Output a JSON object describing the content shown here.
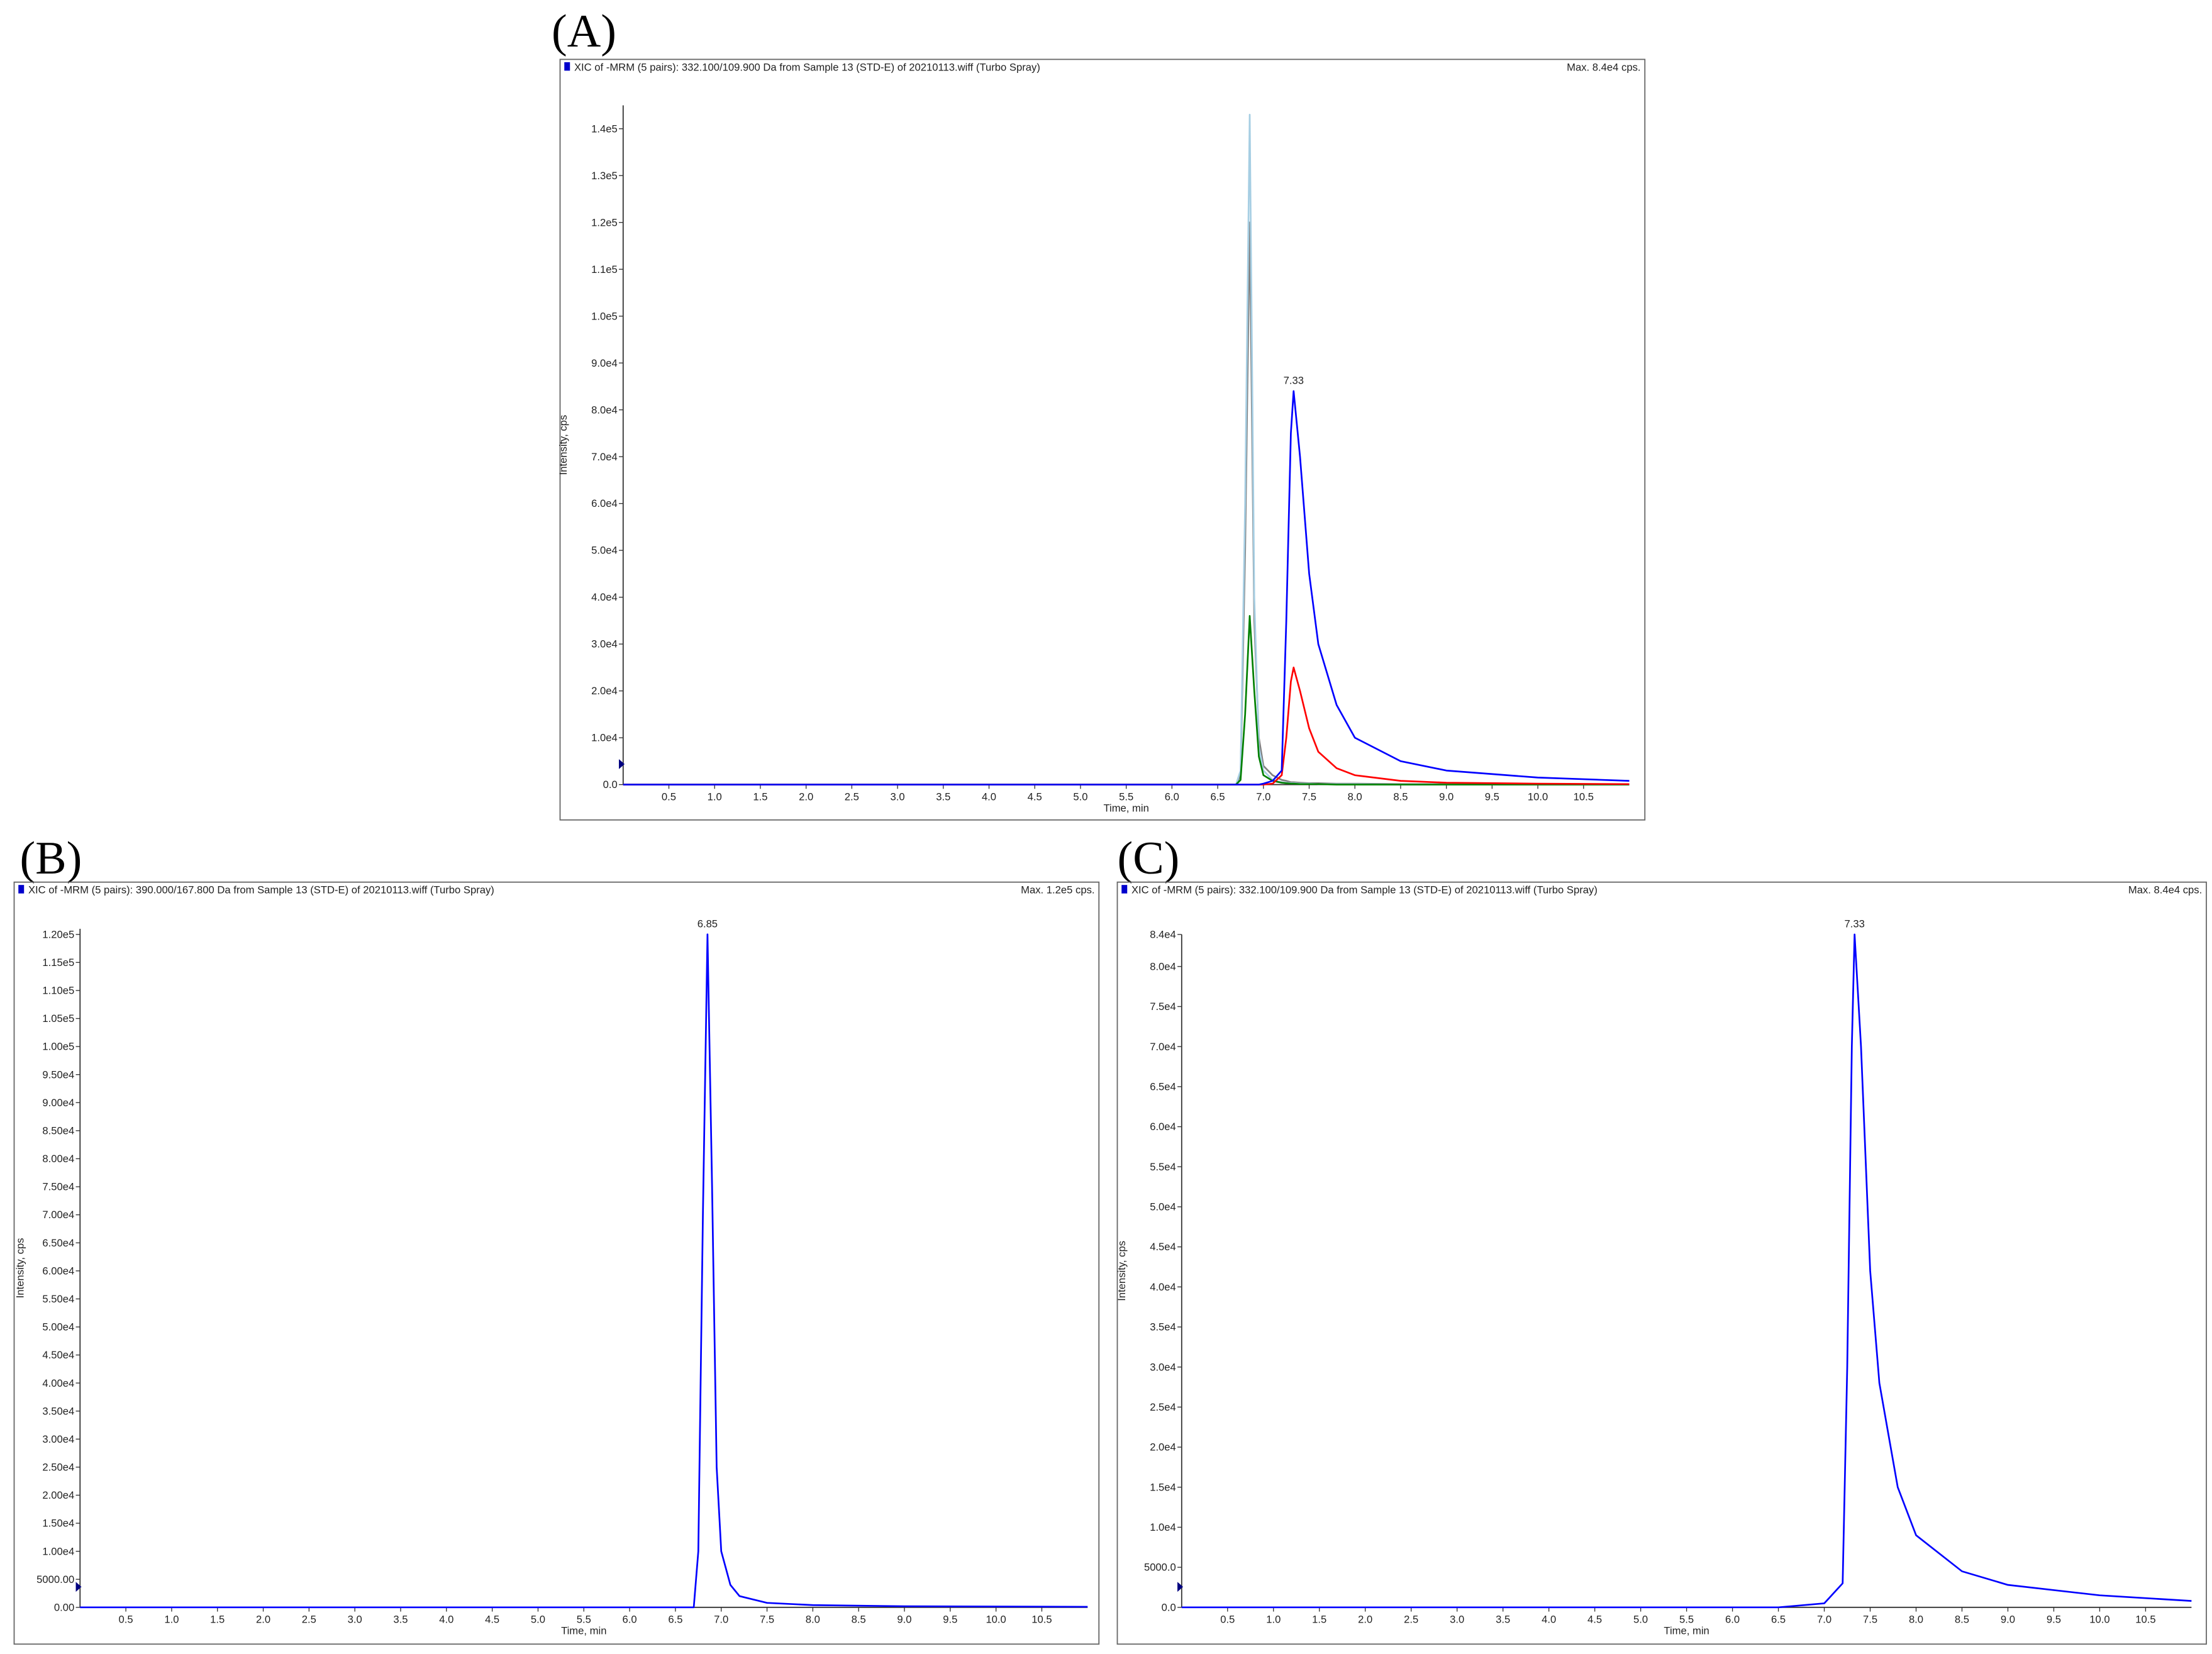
{
  "chart_data": [
    {
      "type": "line",
      "panel_label": "(A)",
      "title": "XIC of -MRM (5 pairs): 332.100/109.900 Da  from Sample 13 (STD-E) of 20210113.wiff (Turbo Spray)",
      "max_label": "Max. 8.4e4 cps.",
      "xlabel": "Time, min",
      "ylabel": "Intensity, cps",
      "annotations": [
        {
          "text": "7.33",
          "x": 7.33,
          "y": 84000
        }
      ],
      "xlim": [
        0,
        11
      ],
      "ylim": [
        0,
        145000
      ],
      "xticks": [
        0.5,
        {
          "value": 1,
          "label": "1.0"
        },
        1.5,
        {
          "value": 2,
          "label": "2.0"
        },
        2.5,
        {
          "value": 3,
          "label": "3.0"
        },
        3.5,
        {
          "value": 4,
          "label": "4.0"
        },
        4.5,
        {
          "value": 5,
          "label": "5.0"
        },
        5.5,
        {
          "value": 6,
          "label": "6.0"
        },
        6.5,
        {
          "value": 7,
          "label": "7.0"
        },
        7.5,
        {
          "value": 8,
          "label": "8.0"
        },
        8.5,
        {
          "value": 9,
          "label": "9.0"
        },
        9.5,
        {
          "value": 10,
          "label": "10.0"
        },
        10.5
      ],
      "yticks": [
        {
          "value": 0,
          "label": "0.0"
        },
        {
          "value": 10000,
          "label": "1.0e4"
        },
        {
          "value": 20000,
          "label": "2.0e4"
        },
        {
          "value": 30000,
          "label": "3.0e4"
        },
        {
          "value": 40000,
          "label": "4.0e4"
        },
        {
          "value": 50000,
          "label": "5.0e4"
        },
        {
          "value": 60000,
          "label": "6.0e4"
        },
        {
          "value": 70000,
          "label": "7.0e4"
        },
        {
          "value": 80000,
          "label": "8.0e4"
        },
        {
          "value": 90000,
          "label": "9.0e4"
        },
        {
          "value": 100000,
          "label": "1.0e5"
        },
        {
          "value": 110000,
          "label": "1.1e5"
        },
        {
          "value": 120000,
          "label": "1.2e5"
        },
        {
          "value": 130000,
          "label": "1.3e5"
        },
        {
          "value": 140000,
          "label": "1.4e5"
        }
      ],
      "x": [
        0,
        6.6,
        6.7,
        6.75,
        6.8,
        6.85,
        6.9,
        6.95,
        7.0,
        7.1,
        7.2,
        7.25,
        7.3,
        7.33,
        7.4,
        7.5,
        7.6,
        7.8,
        8.0,
        8.5,
        9.0,
        10.0,
        11.0
      ],
      "series": [
        {
          "color": "#808080",
          "values": [
            0,
            0,
            0,
            2000,
            50000,
            120000,
            35000,
            10000,
            4000,
            2000,
            1000,
            800,
            500,
            500,
            400,
            300,
            300,
            200,
            200,
            100,
            100,
            0,
            0
          ]
        },
        {
          "color": "#a6cee3",
          "values": [
            0,
            0,
            0,
            3000,
            60000,
            143000,
            40000,
            8000,
            3000,
            1000,
            500,
            400,
            300,
            300,
            200,
            200,
            100,
            100,
            100,
            0,
            0,
            0,
            0
          ]
        },
        {
          "color": "#008000",
          "values": [
            0,
            0,
            0,
            1000,
            15000,
            36000,
            20000,
            6000,
            2000,
            800,
            400,
            300,
            200,
            200,
            100,
            100,
            100,
            0,
            0,
            0,
            0,
            0,
            0
          ]
        },
        {
          "color": "#ff0000",
          "values": [
            0,
            0,
            0,
            0,
            0,
            0,
            0,
            0,
            0,
            200,
            2000,
            10000,
            22000,
            25000,
            20000,
            12000,
            7000,
            3500,
            2000,
            800,
            400,
            200,
            100
          ]
        },
        {
          "color": "#0000ff",
          "values": [
            0,
            0,
            0,
            0,
            0,
            0,
            0,
            0,
            200,
            800,
            3000,
            35000,
            75000,
            84000,
            70000,
            45000,
            30000,
            17000,
            10000,
            5000,
            3000,
            1500,
            800
          ]
        }
      ]
    },
    {
      "type": "line",
      "panel_label": "(B)",
      "title": "XIC of -MRM (5 pairs): 390.000/167.800 Da  from Sample 13 (STD-E) of 20210113.wiff (Turbo Spray)",
      "max_label": "Max. 1.2e5 cps.",
      "xlabel": "Time, min",
      "ylabel": "Intensity, cps",
      "annotations": [
        {
          "text": "6.85",
          "x": 6.85,
          "y": 120000
        }
      ],
      "xlim": [
        0,
        11
      ],
      "ylim": [
        0,
        121000
      ],
      "xticks": [
        0.5,
        {
          "value": 1,
          "label": "1.0"
        },
        1.5,
        {
          "value": 2,
          "label": "2.0"
        },
        2.5,
        {
          "value": 3,
          "label": "3.0"
        },
        3.5,
        {
          "value": 4,
          "label": "4.0"
        },
        4.5,
        {
          "value": 5,
          "label": "5.0"
        },
        5.5,
        {
          "value": 6,
          "label": "6.0"
        },
        6.5,
        {
          "value": 7,
          "label": "7.0"
        },
        7.5,
        {
          "value": 8,
          "label": "8.0"
        },
        8.5,
        {
          "value": 9,
          "label": "9.0"
        },
        9.5,
        {
          "value": 10,
          "label": "10.0"
        },
        10.5
      ],
      "yticks": [
        {
          "value": 0,
          "label": "0.00"
        },
        {
          "value": 5000,
          "label": "5000.00"
        },
        {
          "value": 10000,
          "label": "1.00e4"
        },
        {
          "value": 15000,
          "label": "1.50e4"
        },
        {
          "value": 20000,
          "label": "2.00e4"
        },
        {
          "value": 25000,
          "label": "2.50e4"
        },
        {
          "value": 30000,
          "label": "3.00e4"
        },
        {
          "value": 35000,
          "label": "3.50e4"
        },
        {
          "value": 40000,
          "label": "4.00e4"
        },
        {
          "value": 45000,
          "label": "4.50e4"
        },
        {
          "value": 50000,
          "label": "5.00e4"
        },
        {
          "value": 55000,
          "label": "5.50e4"
        },
        {
          "value": 60000,
          "label": "6.00e4"
        },
        {
          "value": 65000,
          "label": "6.50e4"
        },
        {
          "value": 70000,
          "label": "7.00e4"
        },
        {
          "value": 75000,
          "label": "7.50e4"
        },
        {
          "value": 80000,
          "label": "8.00e4"
        },
        {
          "value": 85000,
          "label": "8.50e4"
        },
        {
          "value": 90000,
          "label": "9.00e4"
        },
        {
          "value": 95000,
          "label": "9.50e4"
        },
        {
          "value": 100000,
          "label": "1.00e5"
        },
        {
          "value": 105000,
          "label": "1.05e5"
        },
        {
          "value": 110000,
          "label": "1.10e5"
        },
        {
          "value": 115000,
          "label": "1.15e5"
        },
        {
          "value": 120000,
          "label": "1.20e5"
        }
      ],
      "x": [
        0,
        6.7,
        6.75,
        6.8,
        6.85,
        6.9,
        6.95,
        7.0,
        7.1,
        7.2,
        7.5,
        8.0,
        9.0,
        11.0
      ],
      "series": [
        {
          "color": "#0000ff",
          "values": [
            0,
            0,
            10000,
            70000,
            120000,
            75000,
            25000,
            10000,
            4000,
            2000,
            800,
            400,
            200,
            100
          ]
        }
      ]
    },
    {
      "type": "line",
      "panel_label": "(C)",
      "title": "XIC of -MRM (5 pairs): 332.100/109.900 Da  from Sample 13 (STD-E) of 20210113.wiff (Turbo Spray)",
      "max_label": "Max. 8.4e4 cps.",
      "xlabel": "Time, min",
      "ylabel": "Intensity, cps",
      "annotations": [
        {
          "text": "7.33",
          "x": 7.33,
          "y": 84000
        }
      ],
      "xlim": [
        0,
        11
      ],
      "ylim": [
        0,
        84000
      ],
      "xticks": [
        0.5,
        {
          "value": 1,
          "label": "1.0"
        },
        1.5,
        {
          "value": 2,
          "label": "2.0"
        },
        2.5,
        {
          "value": 3,
          "label": "3.0"
        },
        3.5,
        {
          "value": 4,
          "label": "4.0"
        },
        4.5,
        {
          "value": 5,
          "label": "5.0"
        },
        5.5,
        {
          "value": 6,
          "label": "6.0"
        },
        6.5,
        {
          "value": 7,
          "label": "7.0"
        },
        7.5,
        {
          "value": 8,
          "label": "8.0"
        },
        8.5,
        {
          "value": 9,
          "label": "9.0"
        },
        9.5,
        {
          "value": 10,
          "label": "10.0"
        },
        10.5
      ],
      "yticks": [
        {
          "value": 0,
          "label": "0.0"
        },
        {
          "value": 5000,
          "label": "5000.0"
        },
        {
          "value": 10000,
          "label": "1.0e4"
        },
        {
          "value": 15000,
          "label": "1.5e4"
        },
        {
          "value": 20000,
          "label": "2.0e4"
        },
        {
          "value": 25000,
          "label": "2.5e4"
        },
        {
          "value": 30000,
          "label": "3.0e4"
        },
        {
          "value": 35000,
          "label": "3.5e4"
        },
        {
          "value": 40000,
          "label": "4.0e4"
        },
        {
          "value": 45000,
          "label": "4.5e4"
        },
        {
          "value": 50000,
          "label": "5.0e4"
        },
        {
          "value": 55000,
          "label": "5.5e4"
        },
        {
          "value": 60000,
          "label": "6.0e4"
        },
        {
          "value": 65000,
          "label": "6.5e4"
        },
        {
          "value": 70000,
          "label": "7.0e4"
        },
        {
          "value": 75000,
          "label": "7.5e4"
        },
        {
          "value": 80000,
          "label": "8.0e4"
        },
        {
          "value": 84000,
          "label": "8.4e4"
        }
      ],
      "x": [
        0,
        6.5,
        7.0,
        7.2,
        7.25,
        7.3,
        7.33,
        7.4,
        7.5,
        7.6,
        7.8,
        8.0,
        8.5,
        9.0,
        10.0,
        11.0
      ],
      "series": [
        {
          "color": "#0000ff",
          "values": [
            0,
            0,
            500,
            3000,
            30000,
            70000,
            84000,
            70000,
            42000,
            28000,
            15000,
            9000,
            4500,
            2800,
            1500,
            800
          ]
        }
      ]
    }
  ]
}
